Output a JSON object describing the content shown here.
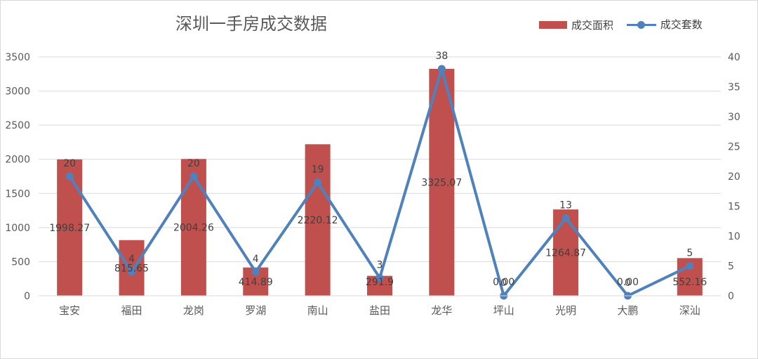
{
  "chart_data": {
    "type": "bar",
    "title": "深圳一手房成交数据",
    "categories": [
      "宝安",
      "福田",
      "龙岗",
      "罗湖",
      "南山",
      "盐田",
      "龙华",
      "坪山",
      "光明",
      "大鹏",
      "深汕"
    ],
    "series": [
      {
        "name": "成交面积",
        "type": "bar",
        "axis": "left",
        "color": "#c0504d",
        "values": [
          1998.27,
          815.65,
          2004.26,
          414.89,
          2220.12,
          291.9,
          3325.07,
          0,
          1264.87,
          0,
          552.16
        ],
        "labels": [
          "1998.27",
          "815.65",
          "2004.26",
          "414.89",
          "2220.12",
          "291.9",
          "3325.07",
          "0.00",
          "1264.87",
          "0.00",
          "552.16"
        ]
      },
      {
        "name": "成交套数",
        "type": "line",
        "axis": "right",
        "color": "#4f81bd",
        "values": [
          20,
          4,
          20,
          4,
          19,
          3,
          38,
          0,
          13,
          0,
          5
        ],
        "labels": [
          "20",
          "4",
          "20",
          "4",
          "19",
          "3",
          "38",
          "0",
          "13",
          "0",
          "5"
        ]
      }
    ],
    "y_left": {
      "min": 0,
      "max": 3500,
      "ticks": [
        "0",
        "500",
        "1000",
        "1500",
        "2000",
        "2500",
        "3000",
        "3500"
      ]
    },
    "y_right": {
      "min": 0,
      "max": 40,
      "ticks": [
        "0",
        "5",
        "10",
        "15",
        "20",
        "25",
        "30",
        "35",
        "40"
      ]
    },
    "grid": true,
    "legend_position": "top-right"
  }
}
